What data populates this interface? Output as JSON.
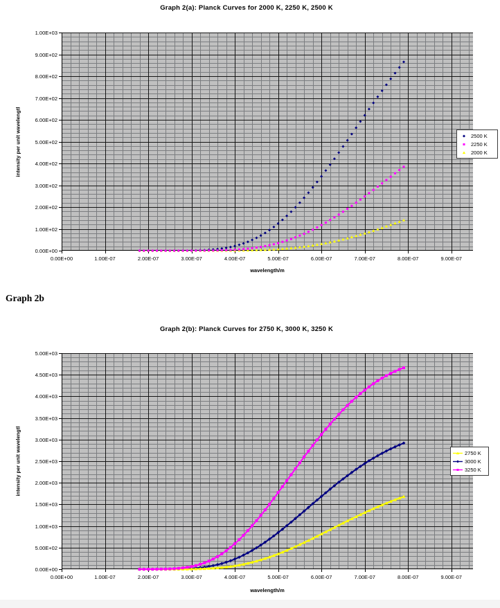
{
  "page": {
    "background": "#ffffff",
    "footer_strip_color": "#f4f4f4"
  },
  "heading": {
    "text": "Graph 2b"
  },
  "chart_data": [
    {
      "type": "scatter",
      "title": "Graph 2(a): Planck Curves for 2000 K, 2250 K, 2500 K",
      "xlabel": "wavelength/m",
      "ylabel": "intensity per unit wavelengtl",
      "plot_bg": "#c0c0c0",
      "grid": true,
      "legend_position": "right",
      "xlim": [
        0,
        9.5e-07
      ],
      "ylim": [
        0,
        1000
      ],
      "x_major": 1e-07,
      "x_minor": 2e-08,
      "y_major": 100,
      "y_minor": 20,
      "x_tick_labels": [
        "0.00E+00",
        "1.00E-07",
        "2.00E-07",
        "3.00E-07",
        "4.00E-07",
        "5.00E-07",
        "6.00E-07",
        "7.00E-07",
        "8.00E-07",
        "9.00E-07"
      ],
      "y_tick_labels": [
        "0.00E+00",
        "1.00E+02",
        "2.00E+02",
        "3.00E+02",
        "4.00E+02",
        "5.00E+02",
        "6.00E+02",
        "7.00E+02",
        "8.00E+02",
        "9.00E+02",
        "1.00E+03"
      ],
      "sample_x_m": [
        2e-07,
        2.5e-07,
        3e-07,
        3.5e-07,
        4e-07,
        4.5e-07,
        5e-07,
        5.5e-07,
        6e-07,
        6.5e-07,
        7e-07,
        7.5e-07,
        7.9e-07
      ],
      "series": [
        {
          "name": "2000 K",
          "temperature_K": 2000,
          "color": "#ffff00",
          "marker": "triangle",
          "line": false,
          "sample_values": [
            0.0,
            0.0,
            0.01,
            0.09,
            0.59,
            2.4,
            7.0,
            16.1,
            30.9,
            52.1,
            79.3,
            111.6,
            140.1
          ]
        },
        {
          "name": "2250 K",
          "temperature_K": 2250,
          "color": "#ff00ff",
          "marker": "square",
          "line": false,
          "sample_values": [
            0.0,
            0.0,
            0.09,
            0.86,
            4.3,
            14.2,
            34.6,
            68.6,
            117.1,
            178.3,
            249.1,
            324.3,
            384.8
          ]
        },
        {
          "name": "2500 K",
          "temperature_K": 2500,
          "color": "#000080",
          "marker": "diamond",
          "line": false,
          "sample_values": [
            0.0,
            0.04,
            0.75,
            5.4,
            21.3,
            58.6,
            124.7,
            220.9,
            340.8,
            475.7,
            620.1,
            759.8,
            864.8
          ]
        }
      ],
      "legend_order": [
        2,
        1,
        0
      ],
      "paint_order": [
        2,
        0,
        1
      ],
      "generator": {
        "formula": "y = scale / (u^5 * (exp(c2/(u*T/1000)) - 1)), u = wavelength_m * 1e7",
        "scale": 38800000000,
        "c2": 143.877,
        "x_start_m": 1.8e-07,
        "x_end_m": 7.9e-07,
        "x_step_m": 1e-08
      }
    },
    {
      "type": "scatter",
      "title": "Graph 2(b): Planck Curves for 2750 K, 3000 K, 3250 K",
      "xlabel": "wavelength/m",
      "ylabel": "intensity per unit wavelengtl",
      "plot_bg": "#c0c0c0",
      "grid": true,
      "legend_position": "right",
      "xlim": [
        0,
        9.5e-07
      ],
      "ylim": [
        0,
        5000
      ],
      "x_major": 1e-07,
      "x_minor": 2e-08,
      "y_major": 500,
      "y_minor": 100,
      "x_tick_labels": [
        "0.00E+00",
        "1.00E-07",
        "2.00E-07",
        "3.00E-07",
        "4.00E-07",
        "5.00E-07",
        "6.00E-07",
        "7.00E-07",
        "8.00E-07",
        "9.00E-07"
      ],
      "y_tick_labels": [
        "0.00E+00",
        "5.00E+02",
        "1.00E+03",
        "1.50E+03",
        "2.00E+03",
        "2.50E+03",
        "3.00E+03",
        "3.50E+03",
        "4.00E+03",
        "4.50E+03",
        "5.00E+03"
      ],
      "sample_x_m": [
        2e-07,
        2.5e-07,
        3e-07,
        3.5e-07,
        4e-07,
        4.5e-07,
        5e-07,
        5.5e-07,
        6e-07,
        6.5e-07,
        7e-07,
        7.5e-07,
        7.9e-07
      ],
      "series": [
        {
          "name": "2750 K",
          "temperature_K": 2750,
          "color": "#ffff00",
          "marker": "triangle",
          "line": true,
          "sample_values": [
            0.0,
            0.32,
            4.3,
            23.7,
            78.8,
            187.1,
            355.8,
            571.4,
            815.0,
            1067.7,
            1311.7,
            1528.6,
            1678.5
          ]
        },
        {
          "name": "3000 K",
          "temperature_K": 3000,
          "color": "#000080",
          "marker": "diamond",
          "line": true,
          "sample_values": [
            0.05,
            1.9,
            18.1,
            82.9,
            234.6,
            493.9,
            848.1,
            1259.3,
            1686.2,
            2091.2,
            2446.1,
            2734.7,
            2918.1
          ]
        },
        {
          "name": "3250 K",
          "temperature_K": 3250,
          "color": "#ff00ff",
          "marker": "square",
          "line": true,
          "sample_values": [
            0.3,
            8.1,
            62.1,
            237.0,
            590.3,
            1121.6,
            1766.5,
            2462.1,
            3120.6,
            3687.8,
            4146.3,
            4482.0,
            4661.5
          ]
        }
      ],
      "legend_order": [
        0,
        1,
        2
      ],
      "paint_order": [
        1,
        0,
        2
      ],
      "generator": {
        "formula": "y = scale / (u^5 * (exp(c2/(u*T/1000)) - 1)), u = wavelength_m * 1e7",
        "scale": 38800000000,
        "c2": 143.877,
        "x_start_m": 1.8e-07,
        "x_end_m": 7.9e-07,
        "x_step_m": 1e-08
      }
    }
  ]
}
